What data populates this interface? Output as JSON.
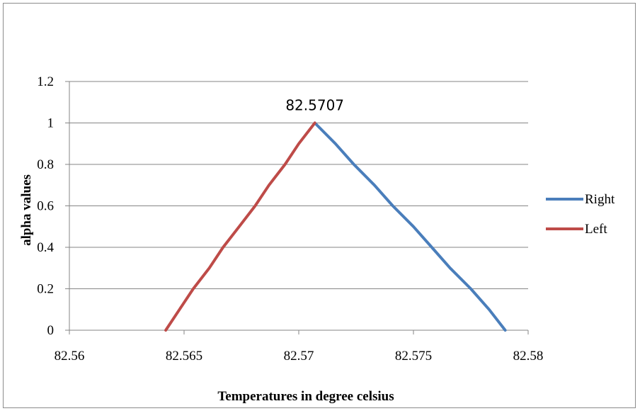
{
  "chart_data": {
    "type": "line",
    "title": "",
    "xlabel": "Temperatures in degree celsius",
    "ylabel": "alpha values",
    "xlim": [
      82.56,
      82.58
    ],
    "ylim": [
      0,
      1.2
    ],
    "x_ticks": [
      "82.56",
      "82.565",
      "82.57",
      "82.575",
      "82.58"
    ],
    "y_ticks": [
      "0",
      "0.2",
      "0.4",
      "0.6",
      "0.8",
      "1",
      "1.2"
    ],
    "grid": "horizontal",
    "legend_position": "right",
    "annotation": {
      "text": "82.5707",
      "x": 82.5707,
      "y": 1
    },
    "series": [
      {
        "name": "Right",
        "color": "#4a7ebb",
        "points": [
          [
            82.5707,
            1.0
          ],
          [
            82.5716,
            0.9
          ],
          [
            82.5724,
            0.8
          ],
          [
            82.5733,
            0.7
          ],
          [
            82.5741,
            0.6
          ],
          [
            82.575,
            0.5
          ],
          [
            82.5758,
            0.4
          ],
          [
            82.5766,
            0.3
          ],
          [
            82.5775,
            0.2
          ],
          [
            82.5783,
            0.1
          ],
          [
            82.579,
            0.0
          ]
        ]
      },
      {
        "name": "Left",
        "color": "#be4b48",
        "points": [
          [
            82.5642,
            0.0
          ],
          [
            82.5648,
            0.1
          ],
          [
            82.5654,
            0.2
          ],
          [
            82.5661,
            0.3
          ],
          [
            82.5667,
            0.4
          ],
          [
            82.5674,
            0.5
          ],
          [
            82.5681,
            0.6
          ],
          [
            82.5687,
            0.7
          ],
          [
            82.5694,
            0.8
          ],
          [
            82.57,
            0.9
          ],
          [
            82.5707,
            1.0
          ]
        ]
      }
    ]
  }
}
